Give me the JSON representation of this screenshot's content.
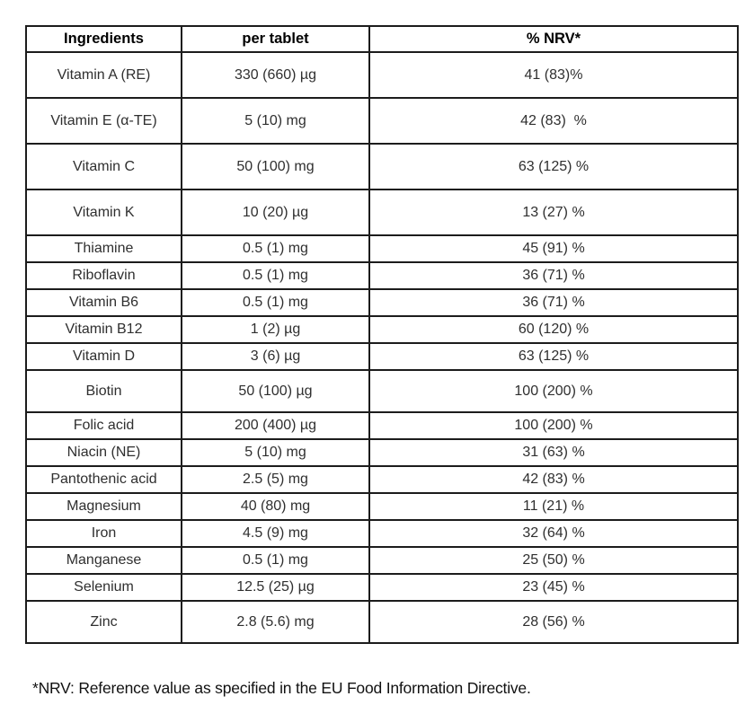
{
  "table": {
    "headers": [
      "Ingredients",
      "per tablet",
      "% NRV*"
    ],
    "rows": [
      {
        "ingredient": "Vitamin A (RE)",
        "per_tablet": "330 (660) µg",
        "nrv": "41 (83)%",
        "size": "tall"
      },
      {
        "ingredient": "Vitamin E (α-TE)",
        "per_tablet": "5 (10) mg",
        "nrv": "42 (83)  %",
        "size": "tall"
      },
      {
        "ingredient": "Vitamin C",
        "per_tablet": "50 (100) mg",
        "nrv": "63 (125) %",
        "size": "tall"
      },
      {
        "ingredient": "Vitamin K",
        "per_tablet": "10 (20) µg",
        "nrv": "13 (27) %",
        "size": "tall"
      },
      {
        "ingredient": "Thiamine",
        "per_tablet": "0.5 (1) mg",
        "nrv": "45 (91) %",
        "size": "short"
      },
      {
        "ingredient": "Riboflavin",
        "per_tablet": "0.5 (1) mg",
        "nrv": "36 (71) %",
        "size": "short"
      },
      {
        "ingredient": "Vitamin B6",
        "per_tablet": "0.5 (1) mg",
        "nrv": "36 (71) %",
        "size": "short"
      },
      {
        "ingredient": "Vitamin B12",
        "per_tablet": "1 (2) µg",
        "nrv": "60 (120) %",
        "size": "short"
      },
      {
        "ingredient": "Vitamin D",
        "per_tablet": "3 (6) µg",
        "nrv": "63 (125) %",
        "size": "short"
      },
      {
        "ingredient": "Biotin",
        "per_tablet": "50 (100) µg",
        "nrv": "100 (200) %",
        "size": "medium"
      },
      {
        "ingredient": "Folic acid",
        "per_tablet": "200 (400) µg",
        "nrv": "100 (200) %",
        "size": "short"
      },
      {
        "ingredient": "Niacin (NE)",
        "per_tablet": "5 (10) mg",
        "nrv": "31 (63) %",
        "size": "short"
      },
      {
        "ingredient": "Pantothenic acid",
        "per_tablet": "2.5 (5) mg",
        "nrv": "42 (83) %",
        "size": "short"
      },
      {
        "ingredient": "Magnesium",
        "per_tablet": "40 (80) mg",
        "nrv": "11 (21) %",
        "size": "short"
      },
      {
        "ingredient": "Iron",
        "per_tablet": "4.5 (9) mg",
        "nrv": "32 (64) %",
        "size": "short"
      },
      {
        "ingredient": "Manganese",
        "per_tablet": "0.5 (1) mg",
        "nrv": "25 (50) %",
        "size": "short"
      },
      {
        "ingredient": "Selenium",
        "per_tablet": "12.5 (25) µg",
        "nrv": "23 (45) %",
        "size": "short"
      },
      {
        "ingredient": "Zinc",
        "per_tablet": "2.8 (5.6) mg",
        "nrv": "28 (56) %",
        "size": "medium"
      }
    ],
    "footnote": "*NRV: Reference value as specified in the EU Food Information Directive."
  },
  "colors": {
    "border": "#1c1c1c",
    "body_text": "#2f2f2f",
    "header_text": "#000000",
    "background": "#ffffff"
  }
}
